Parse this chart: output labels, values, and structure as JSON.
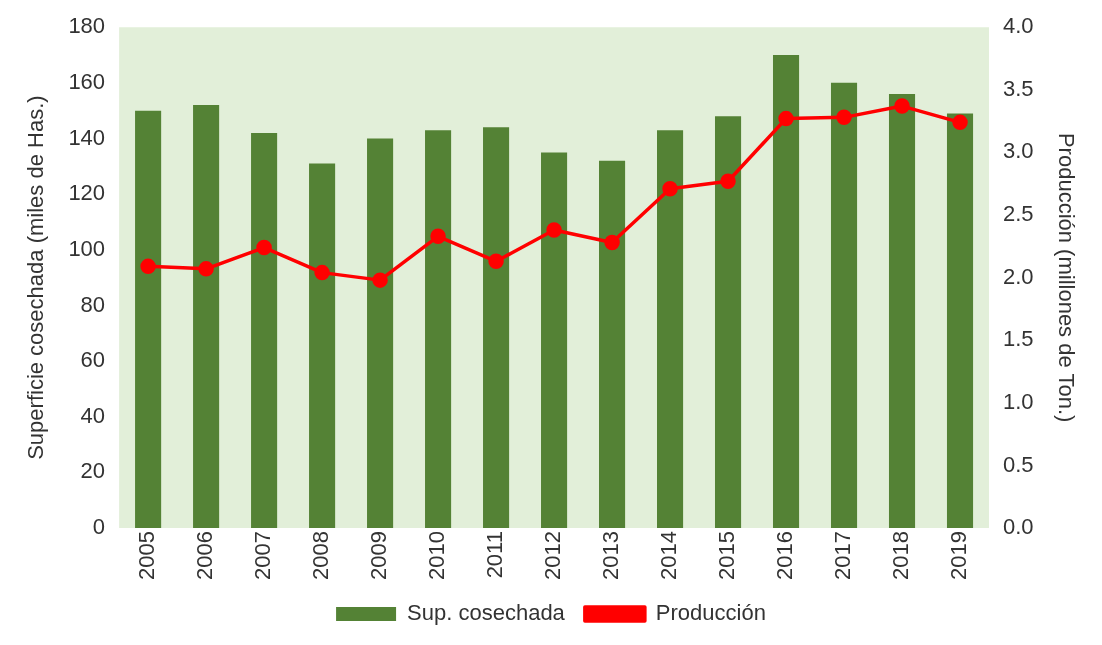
{
  "chart_data": {
    "type": "bar",
    "ylabel": "Superficie cosechada (miles de Has.)",
    "y2label": "Producción (millones de Ton.)",
    "categories": [
      "2005",
      "2006",
      "2007",
      "2008",
      "2009",
      "2010",
      "2011",
      "2012",
      "2013",
      "2014",
      "2015",
      "2016",
      "2017",
      "2018",
      "2019"
    ],
    "series": [
      {
        "name": "Sup. cosechada",
        "color": "#548235",
        "values": [
          150,
          152,
          142,
          131,
          140,
          143,
          144,
          135,
          132,
          143,
          148,
          170,
          160,
          156,
          149
        ]
      },
      {
        "name": "Producción",
        "type": "line",
        "axis": "y2",
        "color": "#ff0000",
        "values": [
          2.09,
          2.07,
          2.24,
          2.04,
          1.98,
          2.33,
          2.13,
          2.38,
          2.28,
          2.71,
          2.77,
          3.27,
          3.28,
          3.37,
          3.24
        ]
      }
    ],
    "ylim": [
      0,
      180
    ],
    "yticks": [
      0,
      20,
      40,
      60,
      80,
      100,
      120,
      140,
      160,
      180
    ],
    "y2lim": [
      0,
      4
    ],
    "y2ticks": [
      {
        "value": 0,
        "label": "0.0"
      },
      {
        "value": 0.5,
        "label": "0.5"
      },
      {
        "value": 1,
        "label": "1.0"
      },
      {
        "value": 1.5,
        "label": "1.5"
      },
      {
        "value": 2,
        "label": "2.0"
      },
      {
        "value": 2.5,
        "label": "2.5"
      },
      {
        "value": 3,
        "label": "3.0"
      },
      {
        "value": 3.5,
        "label": "3.5"
      },
      {
        "value": 4,
        "label": "4.0"
      }
    ],
    "grid": false,
    "legend": "bottom",
    "marker": "circle",
    "line_style": "solid"
  }
}
